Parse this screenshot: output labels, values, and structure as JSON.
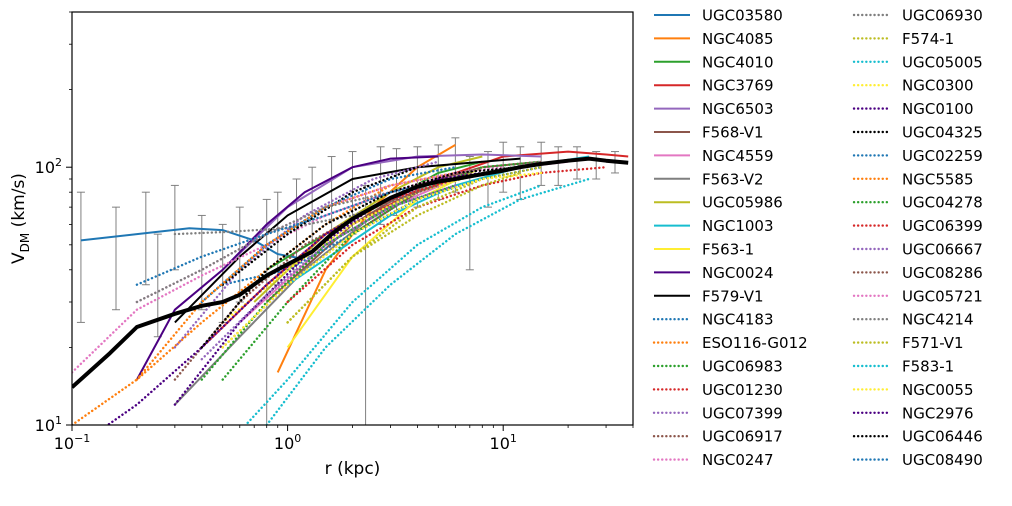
{
  "chart_data": {
    "type": "line",
    "xscale": "log",
    "yscale": "log",
    "xlim": [
      0.1,
      40
    ],
    "ylim": [
      10,
      400
    ],
    "xlabel": "r (kpc)",
    "ylabel_main": "V",
    "ylabel_sub": "DM",
    "ylabel_unit": " (km/s)",
    "x_ticks": [
      {
        "value": 0.1,
        "base": "10",
        "exp": "−1"
      },
      {
        "value": 1,
        "base": "10",
        "exp": "0"
      },
      {
        "value": 10,
        "base": "10",
        "exp": "1"
      }
    ],
    "y_ticks": [
      {
        "value": 10,
        "base": "10",
        "exp": "1"
      },
      {
        "value": 100,
        "base": "10",
        "exp": "2"
      }
    ],
    "grid": false,
    "legend_position": "right, outside plot, two columns",
    "series": [
      {
        "name": "UGC03580",
        "color": "#1f77b4",
        "style": "solid",
        "x": [
          0.11,
          0.2,
          0.35,
          0.5,
          0.7,
          0.9,
          1.2
        ],
        "y": [
          52,
          55,
          58,
          57,
          52,
          46,
          44
        ]
      },
      {
        "name": "NGC4085",
        "color": "#ff7f0e",
        "style": "solid",
        "x": [
          0.9,
          1.5,
          2.5,
          4,
          6
        ],
        "y": [
          16,
          40,
          70,
          100,
          122
        ]
      },
      {
        "name": "NGC4010",
        "color": "#2ca02c",
        "style": "solid",
        "x": [
          0.8,
          1.5,
          3,
          5,
          8
        ],
        "y": [
          40,
          55,
          75,
          95,
          105
        ]
      },
      {
        "name": "NGC3769",
        "color": "#d62728",
        "style": "solid",
        "x": [
          2,
          5,
          10,
          20,
          30,
          38
        ],
        "y": [
          60,
          90,
          110,
          115,
          112,
          110
        ]
      },
      {
        "name": "NGC6503",
        "color": "#9467bd",
        "style": "solid",
        "x": [
          0.5,
          1,
          2,
          4,
          8,
          15
        ],
        "y": [
          40,
          70,
          100,
          110,
          112,
          110
        ]
      },
      {
        "name": "F568-V1",
        "color": "#8c564b",
        "style": "solid",
        "x": [
          0.8,
          2,
          4,
          8,
          15
        ],
        "y": [
          30,
          60,
          85,
          100,
          105
        ]
      },
      {
        "name": "NGC4559",
        "color": "#e377c2",
        "style": "solid",
        "x": [
          0.6,
          1.5,
          3,
          6,
          12,
          20
        ],
        "y": [
          25,
          50,
          70,
          90,
          100,
          105
        ]
      },
      {
        "name": "F563-V2",
        "color": "#7f7f7f",
        "style": "solid",
        "x": [
          0.3,
          0.6,
          1.2,
          2.5,
          5
        ],
        "y": [
          12,
          22,
          40,
          65,
          90
        ]
      },
      {
        "name": "UGC05986",
        "color": "#bcbd22",
        "style": "solid",
        "x": [
          0.7,
          1.5,
          3,
          5,
          8
        ],
        "y": [
          30,
          55,
          80,
          100,
          110
        ]
      },
      {
        "name": "NGC1003",
        "color": "#17becf",
        "style": "solid",
        "x": [
          1,
          3,
          6,
          12,
          25
        ],
        "y": [
          35,
          65,
          85,
          100,
          110
        ]
      },
      {
        "name": "F563-1",
        "color": "#ffee33",
        "style": "solid",
        "x": [
          1,
          2,
          4,
          8
        ],
        "y": [
          20,
          45,
          75,
          100
        ]
      },
      {
        "name": "NGC0024",
        "color": "#4b0082",
        "style": "solid",
        "x": [
          0.2,
          0.3,
          0.5,
          0.8,
          1.2,
          2,
          3,
          5
        ],
        "y": [
          15,
          28,
          40,
          60,
          80,
          100,
          108,
          110
        ]
      },
      {
        "name": "F579-V1",
        "color": "#000000",
        "style": "solid",
        "x": [
          0.3,
          0.6,
          1,
          2,
          4,
          8,
          12
        ],
        "y": [
          25,
          45,
          65,
          90,
          100,
          105,
          108
        ]
      },
      {
        "name": "NGC4183",
        "color": "#1f77b4",
        "style": "dotted",
        "x": [
          0.5,
          1,
          2,
          4,
          8,
          15
        ],
        "y": [
          35,
          40,
          55,
          75,
          90,
          100
        ]
      },
      {
        "name": "ESO116-G012",
        "color": "#ff7f0e",
        "style": "dotted",
        "x": [
          0.1,
          0.2,
          0.4,
          0.8,
          1.5,
          3
        ],
        "y": [
          10,
          15,
          25,
          40,
          60,
          85
        ]
      },
      {
        "name": "UGC06983",
        "color": "#2ca02c",
        "style": "dotted",
        "x": [
          0.5,
          1,
          2,
          4,
          8,
          15
        ],
        "y": [
          15,
          30,
          55,
          80,
          100,
          105
        ]
      },
      {
        "name": "UGC01230",
        "color": "#d62728",
        "style": "dotted",
        "x": [
          1,
          2,
          4,
          8,
          15,
          30
        ],
        "y": [
          30,
          50,
          70,
          85,
          95,
          100
        ]
      },
      {
        "name": "UGC07399",
        "color": "#9467bd",
        "style": "dotted",
        "x": [
          0.3,
          0.6,
          1.2,
          2.5,
          5
        ],
        "y": [
          20,
          40,
          65,
          90,
          105
        ]
      },
      {
        "name": "UGC06917",
        "color": "#8c564b",
        "style": "dotted",
        "x": [
          0.5,
          1,
          2,
          4,
          8
        ],
        "y": [
          20,
          35,
          55,
          80,
          100
        ]
      },
      {
        "name": "NGC0247",
        "color": "#e377c2",
        "style": "dotted",
        "x": [
          0.1,
          0.2,
          0.4,
          0.8,
          1.5,
          3,
          6,
          10
        ],
        "y": [
          16,
          28,
          38,
          50,
          65,
          80,
          95,
          100
        ]
      },
      {
        "name": "UGC06930",
        "color": "#7f7f7f",
        "style": "dotted",
        "x": [
          0.3,
          0.5,
          1,
          2,
          4,
          8,
          15
        ],
        "y": [
          55,
          56,
          58,
          65,
          80,
          95,
          105
        ]
      },
      {
        "name": "F574-1",
        "color": "#bcbd22",
        "style": "dotted",
        "x": [
          1,
          2,
          4,
          8,
          15
        ],
        "y": [
          25,
          45,
          70,
          90,
          100
        ]
      },
      {
        "name": "UGC05005",
        "color": "#17becf",
        "style": "dotted",
        "x": [
          0.8,
          1.5,
          3,
          6,
          12,
          25
        ],
        "y": [
          10,
          20,
          35,
          55,
          75,
          90
        ]
      },
      {
        "name": "NGC0300",
        "color": "#ffee33",
        "style": "dotted",
        "x": [
          0.5,
          1,
          2,
          4,
          8
        ],
        "y": [
          25,
          40,
          60,
          80,
          95
        ]
      },
      {
        "name": "NGC0100",
        "color": "#4b0082",
        "style": "dotted",
        "x": [
          0.3,
          0.6,
          1.2,
          2.5,
          5,
          8
        ],
        "y": [
          12,
          25,
          45,
          70,
          90,
          95
        ]
      },
      {
        "name": "UGC04325",
        "color": "#000000",
        "style": "dotted",
        "x": [
          0.5,
          1,
          2,
          4
        ],
        "y": [
          35,
          55,
          80,
          100
        ]
      },
      {
        "name": "UGC02259",
        "color": "#1f77b4",
        "style": "dotted",
        "x": [
          0.4,
          0.8,
          1.5,
          3,
          6
        ],
        "y": [
          30,
          50,
          70,
          90,
          100
        ]
      },
      {
        "name": "NGC5585",
        "color": "#ff7f0e",
        "style": "dotted",
        "x": [
          0.2,
          0.4,
          0.8,
          1.5,
          3,
          6
        ],
        "y": [
          15,
          30,
          50,
          70,
          85,
          95
        ]
      },
      {
        "name": "UGC04278",
        "color": "#2ca02c",
        "style": "dotted",
        "x": [
          0.4,
          0.8,
          1.5,
          3,
          6
        ],
        "y": [
          15,
          30,
          50,
          70,
          85
        ]
      },
      {
        "name": "UGC06399",
        "color": "#d62728",
        "style": "dotted",
        "x": [
          0.4,
          0.8,
          1.5,
          3,
          6
        ],
        "y": [
          20,
          35,
          55,
          75,
          90
        ]
      },
      {
        "name": "UGC06667",
        "color": "#9467bd",
        "style": "dotted",
        "x": [
          0.4,
          0.8,
          1.5,
          3,
          6
        ],
        "y": [
          18,
          32,
          50,
          70,
          85
        ]
      },
      {
        "name": "UGC08286",
        "color": "#8c564b",
        "style": "dotted",
        "x": [
          0.3,
          0.6,
          1.2,
          2.5,
          5
        ],
        "y": [
          15,
          30,
          50,
          70,
          85
        ]
      },
      {
        "name": "UGC05721",
        "color": "#e377c2",
        "style": "dotted",
        "x": [
          0.2,
          0.4,
          0.8,
          1.5,
          3,
          6
        ],
        "y": [
          30,
          40,
          55,
          70,
          85,
          95
        ]
      },
      {
        "name": "NGC4214",
        "color": "#7f7f7f",
        "style": "dotted",
        "x": [
          0.2,
          0.4,
          0.8,
          1.5,
          3
        ],
        "y": [
          30,
          40,
          55,
          70,
          80
        ]
      },
      {
        "name": "F571-V1",
        "color": "#bcbd22",
        "style": "dotted",
        "x": [
          1,
          2,
          4,
          8,
          12
        ],
        "y": [
          25,
          45,
          65,
          85,
          95
        ]
      },
      {
        "name": "F583-1",
        "color": "#17becf",
        "style": "dotted",
        "x": [
          0.5,
          1,
          2,
          4,
          8,
          15
        ],
        "y": [
          8,
          15,
          30,
          50,
          70,
          85
        ]
      },
      {
        "name": "NGC0055",
        "color": "#ffee33",
        "style": "dotted",
        "x": [
          0.5,
          1,
          2,
          4,
          8,
          15
        ],
        "y": [
          20,
          35,
          55,
          75,
          90,
          95
        ]
      },
      {
        "name": "NGC2976",
        "color": "#4b0082",
        "style": "dotted",
        "x": [
          0.1,
          0.2,
          0.4,
          0.8,
          1.5,
          2.5
        ],
        "y": [
          8,
          12,
          20,
          35,
          55,
          70
        ]
      },
      {
        "name": "UGC06446",
        "color": "#000000",
        "style": "dotted",
        "x": [
          0.4,
          0.8,
          1.5,
          3,
          6,
          12
        ],
        "y": [
          20,
          40,
          60,
          80,
          95,
          100
        ]
      },
      {
        "name": "UGC08490",
        "color": "#1f77b4",
        "style": "dotted",
        "x": [
          0.2,
          0.4,
          0.8,
          1.5,
          3,
          6,
          12
        ],
        "y": [
          35,
          45,
          55,
          65,
          80,
          90,
          100
        ]
      }
    ],
    "mean_curve": {
      "color": "#000000",
      "x": [
        0.1,
        0.15,
        0.2,
        0.3,
        0.4,
        0.5,
        0.6,
        0.8,
        1.0,
        1.3,
        1.6,
        2.0,
        2.5,
        3.0,
        4.0,
        5.0,
        6.0,
        8.0,
        10,
        12,
        15,
        20,
        25,
        30,
        38
      ],
      "y": [
        14,
        19,
        24,
        27,
        29,
        30,
        32,
        38,
        42,
        47,
        55,
        63,
        70,
        76,
        84,
        88,
        90,
        94,
        97,
        100,
        103,
        106,
        108,
        106,
        104
      ]
    },
    "error_bars": {
      "color": "#808080",
      "points": [
        {
          "x": 0.11,
          "y": 52,
          "lo": 25,
          "hi": 80
        },
        {
          "x": 0.16,
          "y": 40,
          "lo": 28,
          "hi": 70
        },
        {
          "x": 0.22,
          "y": 55,
          "lo": 35,
          "hi": 80
        },
        {
          "x": 0.3,
          "y": 58,
          "lo": 40,
          "hi": 85
        },
        {
          "x": 0.25,
          "y": 35,
          "lo": 22,
          "hi": 55
        },
        {
          "x": 0.4,
          "y": 45,
          "lo": 28,
          "hi": 65
        },
        {
          "x": 0.5,
          "y": 40,
          "lo": 25,
          "hi": 60
        },
        {
          "x": 0.6,
          "y": 50,
          "lo": 30,
          "hi": 70
        },
        {
          "x": 0.8,
          "y": 45,
          "lo": 10,
          "hi": 75
        },
        {
          "x": 0.9,
          "y": 55,
          "lo": 35,
          "hi": 80
        },
        {
          "x": 1.1,
          "y": 60,
          "lo": 40,
          "hi": 90
        },
        {
          "x": 1.3,
          "y": 70,
          "lo": 45,
          "hi": 100
        },
        {
          "x": 1.6,
          "y": 75,
          "lo": 50,
          "hi": 110
        },
        {
          "x": 2.0,
          "y": 80,
          "lo": 55,
          "hi": 115
        },
        {
          "x": 2.3,
          "y": 60,
          "lo": 10,
          "hi": 85
        },
        {
          "x": 2.7,
          "y": 85,
          "lo": 60,
          "hi": 120
        },
        {
          "x": 3.2,
          "y": 90,
          "lo": 65,
          "hi": 118
        },
        {
          "x": 4.0,
          "y": 95,
          "lo": 70,
          "hi": 120
        },
        {
          "x": 5.0,
          "y": 100,
          "lo": 75,
          "hi": 122
        },
        {
          "x": 6.0,
          "y": 105,
          "lo": 80,
          "hi": 130
        },
        {
          "x": 7.0,
          "y": 80,
          "lo": 40,
          "hi": 110
        },
        {
          "x": 8.5,
          "y": 100,
          "lo": 70,
          "hi": 115
        },
        {
          "x": 10,
          "y": 105,
          "lo": 80,
          "hi": 125
        },
        {
          "x": 12,
          "y": 100,
          "lo": 75,
          "hi": 120
        },
        {
          "x": 15,
          "y": 110,
          "lo": 85,
          "hi": 125
        },
        {
          "x": 18,
          "y": 105,
          "lo": 85,
          "hi": 120
        },
        {
          "x": 22,
          "y": 110,
          "lo": 90,
          "hi": 120
        },
        {
          "x": 27,
          "y": 105,
          "lo": 90,
          "hi": 115
        },
        {
          "x": 33,
          "y": 108,
          "lo": 95,
          "hi": 115
        }
      ]
    }
  }
}
